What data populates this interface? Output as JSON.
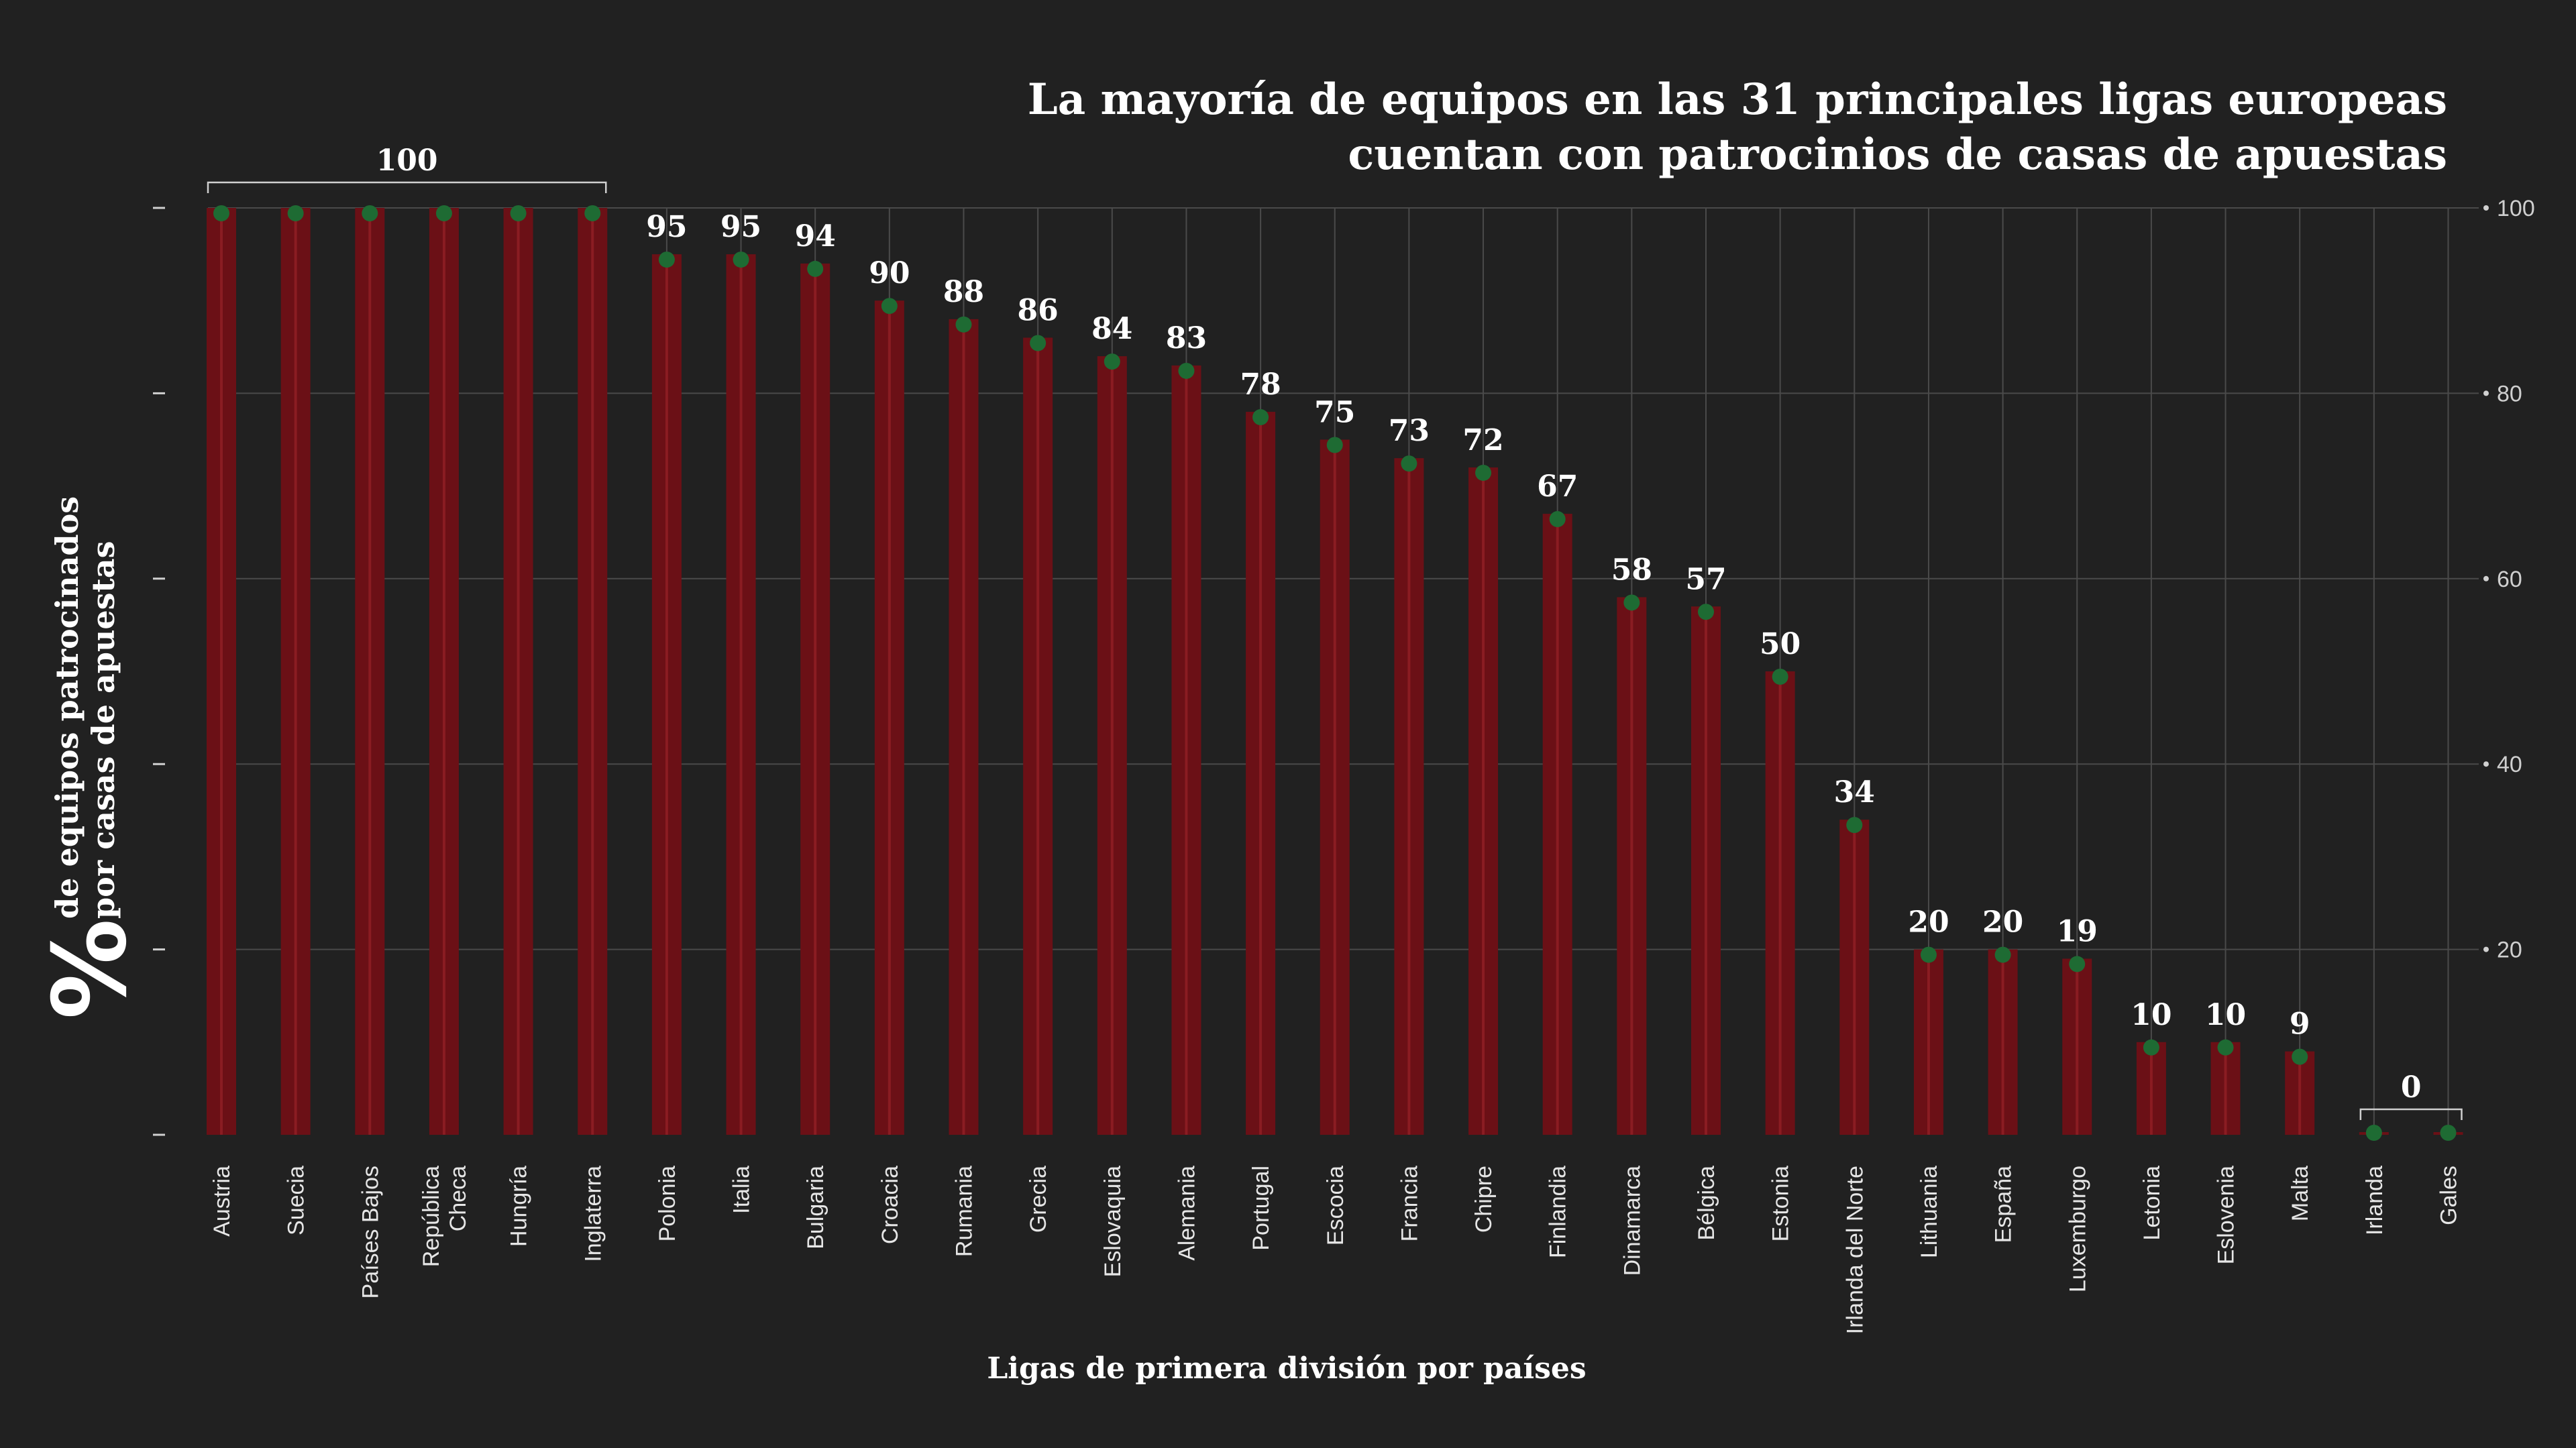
{
  "title_lines": [
    "La mayoría de equipos en las 31 principales ligas europeas",
    "cuentan con patrocinios de casas de apuestas"
  ],
  "colors": {
    "background": "#212121",
    "bar": "#6b1016",
    "bar_stripe": "#8a1c22",
    "marker": "#1e6b33",
    "text": "#ffffff",
    "grid": "#4a4a4a"
  },
  "chart_data": {
    "type": "bar",
    "xlabel": "Ligas de primera división por países",
    "ylabel_symbol": "%",
    "ylabel_lines": [
      "de equipos patrocinados",
      "por casas de apuestas"
    ],
    "ylim": [
      0,
      100
    ],
    "yticks": [
      100,
      80,
      60,
      40,
      20
    ],
    "grid": true,
    "categories": [
      [
        "Austria"
      ],
      [
        "Suecia"
      ],
      [
        "Países Bajos"
      ],
      [
        "República",
        "Checa"
      ],
      [
        "Hungría"
      ],
      [
        "Inglaterra"
      ],
      [
        "Polonia"
      ],
      [
        "Italia"
      ],
      [
        "Bulgaria"
      ],
      [
        "Croacia"
      ],
      [
        "Rumania"
      ],
      [
        "Grecia"
      ],
      [
        "Eslovaquia"
      ],
      [
        "Alemania"
      ],
      [
        "Portugal"
      ],
      [
        "Escocia"
      ],
      [
        "Francia"
      ],
      [
        "Chipre"
      ],
      [
        "Finlandia"
      ],
      [
        "Dinamarca"
      ],
      [
        "Bélgica"
      ],
      [
        "Estonia"
      ],
      [
        "Irlanda del Norte"
      ],
      [
        "Lithuania"
      ],
      [
        "España"
      ],
      [
        "Luxemburgo"
      ],
      [
        "Letonia"
      ],
      [
        "Eslovenia"
      ],
      [
        "Malta"
      ],
      [
        "Irlanda"
      ],
      [
        "Gales"
      ]
    ],
    "values": [
      100,
      100,
      100,
      100,
      100,
      100,
      95,
      95,
      94,
      90,
      88,
      86,
      84,
      83,
      78,
      75,
      73,
      72,
      67,
      58,
      57,
      50,
      34,
      20,
      20,
      19,
      10,
      10,
      9,
      0,
      0
    ],
    "data_labels": [
      {
        "text": "100",
        "from": 0,
        "to": 5,
        "bracket": true
      },
      {
        "text": "95",
        "from": 6,
        "to": 6,
        "bracket": false
      },
      {
        "text": "95",
        "from": 7,
        "to": 7,
        "bracket": false
      },
      {
        "text": "94",
        "from": 8,
        "to": 8,
        "bracket": false
      },
      {
        "text": "90",
        "from": 9,
        "to": 9,
        "bracket": false
      },
      {
        "text": "88",
        "from": 10,
        "to": 10,
        "bracket": false
      },
      {
        "text": "86",
        "from": 11,
        "to": 11,
        "bracket": false
      },
      {
        "text": "84",
        "from": 12,
        "to": 12,
        "bracket": false
      },
      {
        "text": "83",
        "from": 13,
        "to": 13,
        "bracket": false
      },
      {
        "text": "78",
        "from": 14,
        "to": 14,
        "bracket": false
      },
      {
        "text": "75",
        "from": 15,
        "to": 15,
        "bracket": false
      },
      {
        "text": "73",
        "from": 16,
        "to": 16,
        "bracket": false
      },
      {
        "text": "72",
        "from": 17,
        "to": 17,
        "bracket": false
      },
      {
        "text": "67",
        "from": 18,
        "to": 18,
        "bracket": false
      },
      {
        "text": "58",
        "from": 19,
        "to": 19,
        "bracket": false
      },
      {
        "text": "57",
        "from": 20,
        "to": 20,
        "bracket": false
      },
      {
        "text": "50",
        "from": 21,
        "to": 21,
        "bracket": false
      },
      {
        "text": "34",
        "from": 22,
        "to": 22,
        "bracket": false
      },
      {
        "text": "20",
        "from": 23,
        "to": 23,
        "bracket": false
      },
      {
        "text": "20",
        "from": 24,
        "to": 24,
        "bracket": false
      },
      {
        "text": "19",
        "from": 25,
        "to": 25,
        "bracket": false
      },
      {
        "text": "10",
        "from": 26,
        "to": 26,
        "bracket": false
      },
      {
        "text": "10",
        "from": 27,
        "to": 27,
        "bracket": false
      },
      {
        "text": "9",
        "from": 28,
        "to": 28,
        "bracket": false
      },
      {
        "text": "0",
        "from": 29,
        "to": 30,
        "bracket": true
      }
    ]
  }
}
